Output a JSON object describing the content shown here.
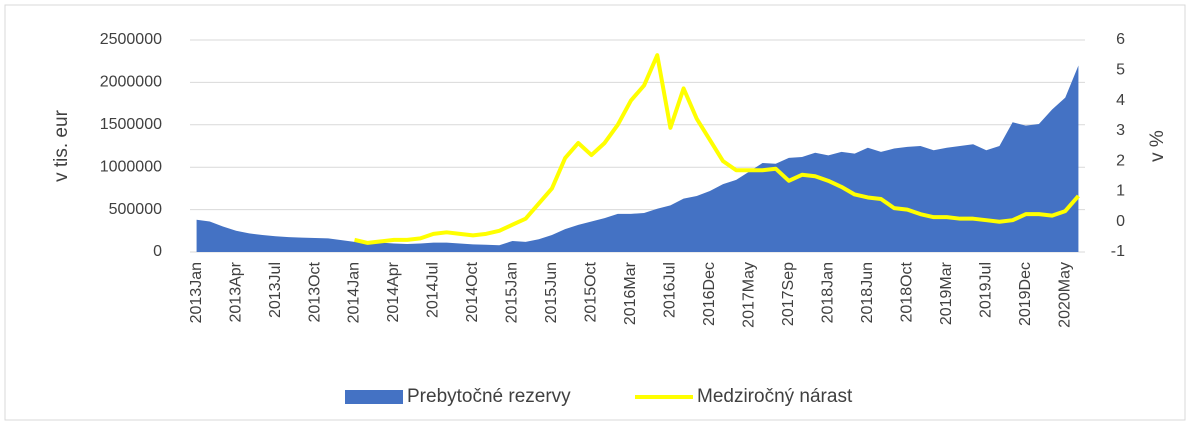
{
  "chart_data": {
    "type": "area-line",
    "categories": [
      "2013Jan",
      null,
      null,
      "2013Apr",
      null,
      null,
      "2013Jul",
      null,
      null,
      "2013Oct",
      null,
      null,
      "2014Jan",
      null,
      null,
      "2014Apr",
      null,
      null,
      "2014Jul",
      null,
      null,
      "2014Oct",
      null,
      null,
      "2015Jan",
      null,
      null,
      "2015Jun",
      null,
      null,
      "2015Oct",
      null,
      null,
      "2016Mar",
      null,
      null,
      "2016Jul",
      null,
      null,
      "2016Dec",
      null,
      null,
      "2017May",
      null,
      null,
      "2017Sep",
      null,
      null,
      "2018Jan",
      null,
      null,
      "2018Jun",
      null,
      null,
      "2018Oct",
      null,
      null,
      "2019Mar",
      null,
      null,
      "2019Jul",
      null,
      null,
      "2019Dec",
      null,
      null,
      "2020May",
      null
    ],
    "y_label": "v tis. eur",
    "y2_label": "v %",
    "ylim": [
      0,
      2500000
    ],
    "yticks": [
      0,
      500000,
      1000000,
      1500000,
      2000000,
      2500000
    ],
    "y2lim": [
      -1,
      6
    ],
    "y2ticks": [
      -1,
      0,
      1,
      2,
      3,
      4,
      5,
      6
    ],
    "grid": true,
    "legend": "bottom",
    "series": [
      {
        "name": "Prebytočné rezervy",
        "type": "area",
        "color": "#4472c4",
        "values": [
          380000,
          360000,
          300000,
          250000,
          220000,
          200000,
          185000,
          175000,
          170000,
          165000,
          160000,
          140000,
          120000,
          130000,
          110000,
          100000,
          95000,
          100000,
          110000,
          110000,
          100000,
          90000,
          85000,
          80000,
          130000,
          120000,
          150000,
          200000,
          270000,
          320000,
          360000,
          400000,
          450000,
          450000,
          460000,
          510000,
          550000,
          630000,
          660000,
          720000,
          800000,
          850000,
          950000,
          1050000,
          1040000,
          1110000,
          1120000,
          1170000,
          1140000,
          1180000,
          1160000,
          1230000,
          1180000,
          1220000,
          1240000,
          1250000,
          1200000,
          1230000,
          1250000,
          1270000,
          1200000,
          1250000,
          1530000,
          1490000,
          1510000,
          1680000,
          1820000,
          2200000
        ]
      },
      {
        "name": "Medziročný nárast",
        "type": "line",
        "axis": "y2",
        "color": "#ffff00",
        "values": [
          null,
          null,
          null,
          null,
          null,
          null,
          null,
          null,
          null,
          null,
          null,
          null,
          -0.6,
          -0.7,
          -0.65,
          -0.6,
          -0.6,
          -0.55,
          -0.4,
          -0.35,
          -0.4,
          -0.45,
          -0.4,
          -0.3,
          -0.1,
          0.1,
          0.6,
          1.1,
          2.1,
          2.6,
          2.2,
          2.6,
          3.2,
          4.0,
          4.5,
          5.5,
          3.1,
          4.4,
          3.4,
          2.7,
          2.0,
          1.7,
          1.7,
          1.7,
          1.75,
          1.35,
          1.55,
          1.5,
          1.35,
          1.15,
          0.9,
          0.8,
          0.75,
          0.45,
          0.4,
          0.25,
          0.15,
          0.15,
          0.1,
          0.1,
          0.05,
          0.0,
          0.05,
          0.25,
          0.25,
          0.2,
          0.35,
          0.85
        ]
      }
    ]
  }
}
